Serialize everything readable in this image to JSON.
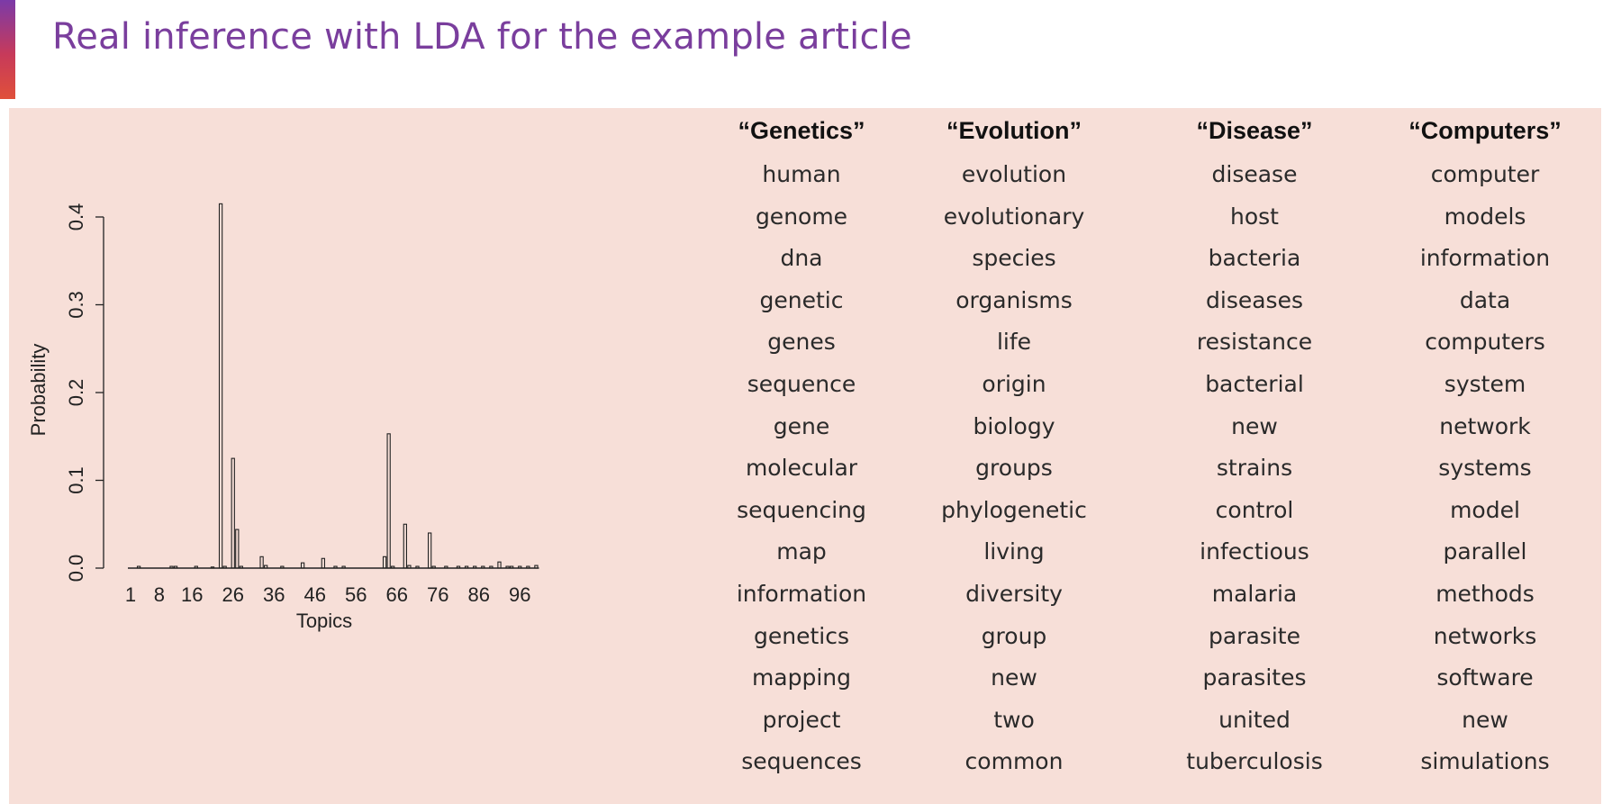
{
  "title": "Real inference with LDA for the example article",
  "colors": {
    "title": "#7a3e9d",
    "panel_bg": "#f7dfd8",
    "accent_top": "#7b3aa8",
    "accent_bottom": "#e0503a"
  },
  "chart_data": {
    "type": "bar",
    "xlabel": "Topics",
    "ylabel": "Probability",
    "ylim": [
      0,
      0.4
    ],
    "y_ticks": [
      "0.0",
      "0.1",
      "0.2",
      "0.3",
      "0.4"
    ],
    "x_ticks": [
      "1",
      "8",
      "16",
      "26",
      "36",
      "46",
      "56",
      "66",
      "76",
      "86",
      "96"
    ],
    "x_range": [
      1,
      100
    ],
    "grid": false,
    "bars": [
      {
        "topic": 3,
        "value": 0.002
      },
      {
        "topic": 11,
        "value": 0.002
      },
      {
        "topic": 12,
        "value": 0.002
      },
      {
        "topic": 17,
        "value": 0.002
      },
      {
        "topic": 21,
        "value": 0.001
      },
      {
        "topic": 23,
        "value": 0.415
      },
      {
        "topic": 24,
        "value": 0.002
      },
      {
        "topic": 26,
        "value": 0.125
      },
      {
        "topic": 27,
        "value": 0.044
      },
      {
        "topic": 28,
        "value": 0.002
      },
      {
        "topic": 33,
        "value": 0.013
      },
      {
        "topic": 34,
        "value": 0.003
      },
      {
        "topic": 38,
        "value": 0.002
      },
      {
        "topic": 43,
        "value": 0.006
      },
      {
        "topic": 48,
        "value": 0.011
      },
      {
        "topic": 51,
        "value": 0.002
      },
      {
        "topic": 53,
        "value": 0.002
      },
      {
        "topic": 63,
        "value": 0.013
      },
      {
        "topic": 64,
        "value": 0.153
      },
      {
        "topic": 65,
        "value": 0.002
      },
      {
        "topic": 68,
        "value": 0.05
      },
      {
        "topic": 69,
        "value": 0.003
      },
      {
        "topic": 71,
        "value": 0.002
      },
      {
        "topic": 74,
        "value": 0.04
      },
      {
        "topic": 75,
        "value": 0.002
      },
      {
        "topic": 78,
        "value": 0.002
      },
      {
        "topic": 81,
        "value": 0.002
      },
      {
        "topic": 83,
        "value": 0.002
      },
      {
        "topic": 85,
        "value": 0.002
      },
      {
        "topic": 87,
        "value": 0.002
      },
      {
        "topic": 89,
        "value": 0.002
      },
      {
        "topic": 91,
        "value": 0.007
      },
      {
        "topic": 93,
        "value": 0.002
      },
      {
        "topic": 94,
        "value": 0.002
      },
      {
        "topic": 96,
        "value": 0.002
      },
      {
        "topic": 98,
        "value": 0.002
      },
      {
        "topic": 100,
        "value": 0.003
      }
    ]
  },
  "topics": [
    {
      "name": "“Genetics”",
      "words": [
        "human",
        "genome",
        "dna",
        "genetic",
        "genes",
        "sequence",
        "gene",
        "molecular",
        "sequencing",
        "map",
        "information",
        "genetics",
        "mapping",
        "project",
        "sequences"
      ]
    },
    {
      "name": "“Evolution”",
      "words": [
        "evolution",
        "evolutionary",
        "species",
        "organisms",
        "life",
        "origin",
        "biology",
        "groups",
        "phylogenetic",
        "living",
        "diversity",
        "group",
        "new",
        "two",
        "common"
      ]
    },
    {
      "name": "“Disease”",
      "words": [
        "disease",
        "host",
        "bacteria",
        "diseases",
        "resistance",
        "bacterial",
        "new",
        "strains",
        "control",
        "infectious",
        "malaria",
        "parasite",
        "parasites",
        "united",
        "tuberculosis"
      ]
    },
    {
      "name": "“Computers”",
      "words": [
        "computer",
        "models",
        "information",
        "data",
        "computers",
        "system",
        "network",
        "systems",
        "model",
        "parallel",
        "methods",
        "networks",
        "software",
        "new",
        "simulations"
      ]
    }
  ]
}
